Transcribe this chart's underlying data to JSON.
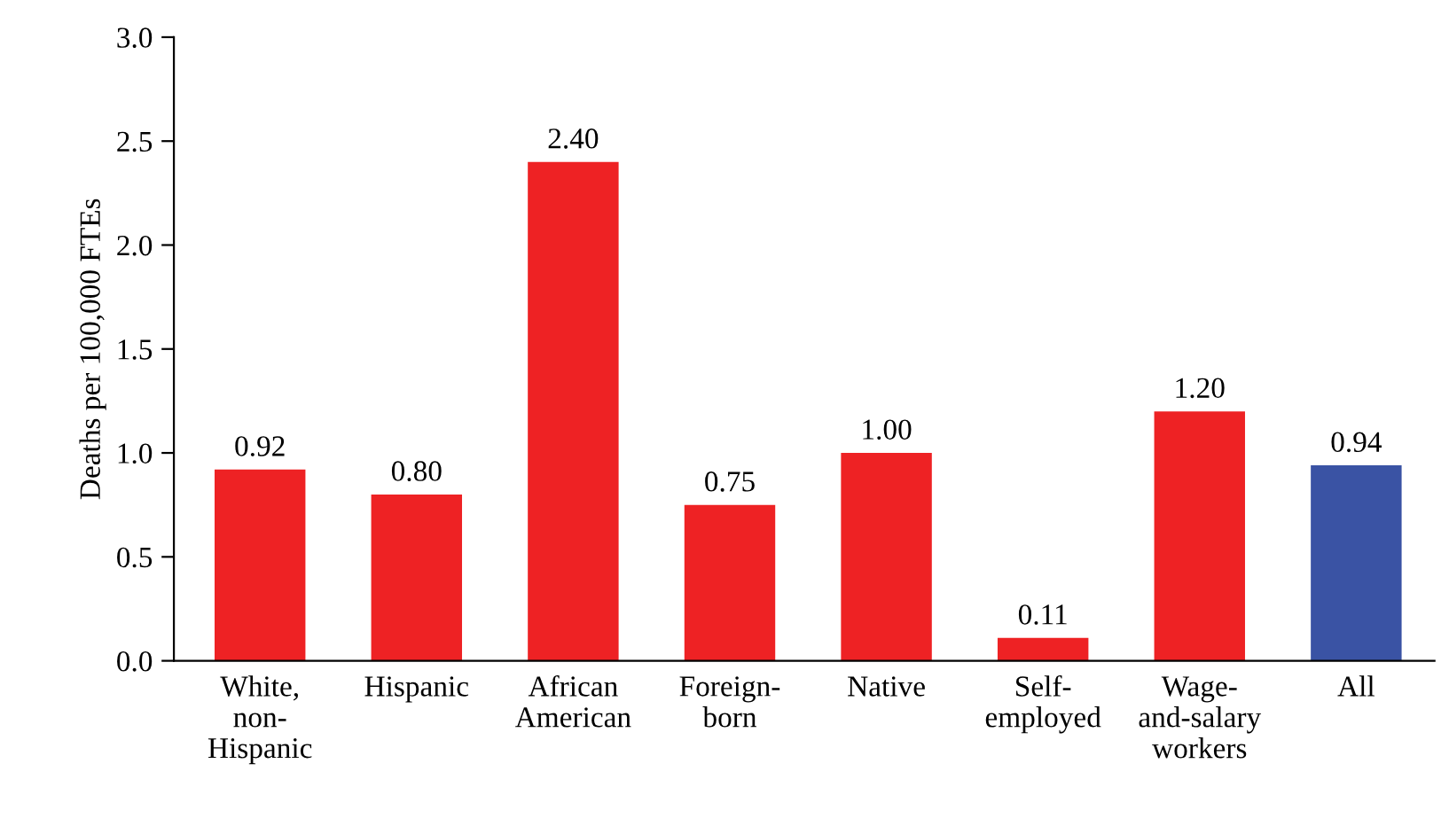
{
  "chart_data": {
    "type": "bar",
    "ylabel": "Deaths per 100,000 FTEs",
    "categories": [
      "White,\nnon-\nHispanic",
      "Hispanic",
      "African\nAmerican",
      "Foreign-\nborn",
      "Native",
      "Self-\nemployed",
      "Wage-\nand-salary\nworkers",
      "All"
    ],
    "values": [
      0.92,
      0.8,
      2.4,
      0.75,
      1.0,
      0.11,
      1.2,
      0.94
    ],
    "colors": [
      "#ee2224",
      "#ee2224",
      "#ee2224",
      "#ee2224",
      "#ee2224",
      "#ee2224",
      "#ee2224",
      "#3a53a4"
    ],
    "value_labels": [
      "0.92",
      "0.80",
      "2.40",
      "0.75",
      "1.00",
      "0.11",
      "1.20",
      "0.94"
    ],
    "ylim": [
      0,
      3
    ],
    "yticks": [
      {
        "value": 0,
        "label": "0.0"
      },
      {
        "value": 0.5,
        "label": "0.5"
      },
      {
        "value": 1,
        "label": "1.0"
      },
      {
        "value": 1.5,
        "label": "1.5"
      },
      {
        "value": 2,
        "label": "2.0"
      },
      {
        "value": 2.5,
        "label": "2.5"
      },
      {
        "value": 3,
        "label": "3.0"
      }
    ],
    "grid": false,
    "legend": false
  }
}
